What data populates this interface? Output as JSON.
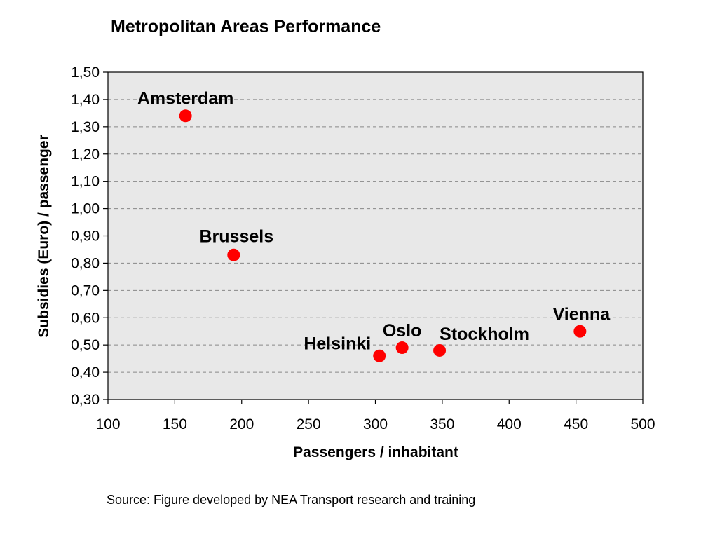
{
  "chart_data": {
    "type": "scatter",
    "title": "Metropolitan Areas Performance",
    "xlabel": "Passengers / inhabitant",
    "ylabel": "Subsidies (Euro) / passenger",
    "xlim": [
      100,
      500
    ],
    "ylim": [
      0.3,
      1.5
    ],
    "xticks": [
      "100",
      "150",
      "200",
      "250",
      "300",
      "350",
      "400",
      "450",
      "500"
    ],
    "yticks": [
      "0,30",
      "0,40",
      "0,50",
      "0,60",
      "0,70",
      "0,80",
      "0,90",
      "1,00",
      "1,10",
      "1,20",
      "1,30",
      "1,40",
      "1,50"
    ],
    "grid": "horizontal-dashed",
    "points": [
      {
        "label": "Amsterdam",
        "x": 158,
        "y": 1.34
      },
      {
        "label": "Brussels",
        "x": 194,
        "y": 0.83
      },
      {
        "label": "Helsinki",
        "x": 303,
        "y": 0.46
      },
      {
        "label": "Oslo",
        "x": 320,
        "y": 0.49
      },
      {
        "label": "Stockholm",
        "x": 348,
        "y": 0.48
      },
      {
        "label": "Vienna",
        "x": 453,
        "y": 0.55
      }
    ],
    "source": "Source: Figure developed by NEA Transport research and training",
    "colors": {
      "plot_background": "#e8e8e8",
      "point": "#ff0000",
      "grid": "#888888",
      "axis": "#000000"
    }
  }
}
